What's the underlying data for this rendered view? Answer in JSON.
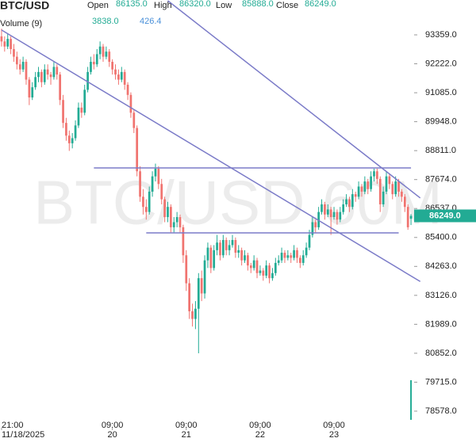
{
  "chart_data": {
    "type": "candlestick",
    "title": "BTC/USD",
    "watermark": "BTC/USD,60M",
    "header": [
      {
        "name": "Open",
        "value": 86135,
        "label": "86135.0"
      },
      {
        "name": "High",
        "value": 86320,
        "label": "86320.0"
      },
      {
        "name": "Low",
        "value": 85888,
        "label": "85888.0"
      },
      {
        "name": "Close",
        "value": 86249,
        "label": "86249.0"
      }
    ],
    "volume": {
      "name": "Volume (9)",
      "value": 3838,
      "label": "3838.0",
      "ma": 426.4,
      "ma_label": "426.4",
      "color": "#22ab94",
      "ma_color": "#4a90d9"
    },
    "up_color": "#22ab94",
    "down_color": "#f0736f",
    "line_color": "#7b7bc8",
    "last_price": {
      "value": 86249,
      "label": "86249.0"
    },
    "ylim": [
      77925,
      94728
    ],
    "yticks": [
      {
        "value": 93359,
        "label": "93359.0"
      },
      {
        "value": 92222,
        "label": "92222.0"
      },
      {
        "value": 91085,
        "label": "91085.0"
      },
      {
        "value": 89948,
        "label": "89948.0"
      },
      {
        "value": 88811,
        "label": "88811.0"
      },
      {
        "value": 87674,
        "label": "87674.0"
      },
      {
        "value": 86537,
        "label": "86537.0"
      },
      {
        "value": 85400,
        "label": "85400.0"
      },
      {
        "value": 84263,
        "label": "84263.0"
      },
      {
        "value": 83126,
        "label": "83126.0"
      },
      {
        "value": 81989,
        "label": "81989.0"
      },
      {
        "value": 80852,
        "label": "80852.0"
      },
      {
        "value": 79715,
        "label": "79715.0"
      },
      {
        "value": 78578,
        "label": "78578.0"
      }
    ],
    "xticks": [
      {
        "index": 0,
        "time": "21:00",
        "date": "11/18/2025"
      },
      {
        "index": 36,
        "time": "09:00",
        "date": "20"
      },
      {
        "index": 60,
        "time": "09:00",
        "date": "21"
      },
      {
        "index": 84,
        "time": "09:00",
        "date": "22"
      },
      {
        "index": 108,
        "time": "09:00",
        "date": "23"
      }
    ],
    "trendlines": [
      {
        "x1": 0,
        "y1": 93550,
        "x2": 136,
        "y2": 83670
      },
      {
        "x1": 54,
        "y1": 94700,
        "x2": 136,
        "y2": 86950
      },
      {
        "x1": 30,
        "y1": 88130,
        "x2": 133,
        "y2": 88130
      },
      {
        "x1": 47,
        "y1": 85580,
        "x2": 129,
        "y2": 85580
      }
    ],
    "candles": [
      [
        93300,
        93600,
        92900,
        93100
      ],
      [
        93100,
        93300,
        92700,
        92900
      ],
      [
        92900,
        93400,
        92800,
        93200
      ],
      [
        93200,
        93300,
        92600,
        92800
      ],
      [
        92800,
        93000,
        92300,
        92500
      ],
      [
        92500,
        92700,
        92000,
        92200
      ],
      [
        92200,
        92400,
        91800,
        92000
      ],
      [
        92000,
        92500,
        91900,
        92300
      ],
      [
        92300,
        92400,
        91400,
        91600
      ],
      [
        91600,
        91700,
        90600,
        90900
      ],
      [
        90900,
        91500,
        90800,
        91300
      ],
      [
        91300,
        91900,
        91200,
        91700
      ],
      [
        91700,
        92100,
        91500,
        91900
      ],
      [
        91900,
        92000,
        91300,
        91500
      ],
      [
        91500,
        92200,
        91400,
        92000
      ],
      [
        92000,
        92200,
        91600,
        91800
      ],
      [
        91800,
        91900,
        91400,
        91700
      ],
      [
        91700,
        92300,
        91600,
        92100
      ],
      [
        92100,
        92200,
        91600,
        91800
      ],
      [
        91800,
        91900,
        90600,
        90800
      ],
      [
        90800,
        91000,
        89700,
        89900
      ],
      [
        89900,
        90100,
        89200,
        89400
      ],
      [
        89400,
        89600,
        88800,
        89100
      ],
      [
        89100,
        89500,
        88900,
        89300
      ],
      [
        89300,
        90000,
        89200,
        89800
      ],
      [
        89800,
        90700,
        89700,
        90500
      ],
      [
        90500,
        90700,
        90100,
        90300
      ],
      [
        90300,
        91400,
        90200,
        91200
      ],
      [
        91200,
        92100,
        91100,
        91900
      ],
      [
        91900,
        92500,
        91800,
        92300
      ],
      [
        92300,
        92600,
        92000,
        92200
      ],
      [
        92200,
        92800,
        92100,
        92600
      ],
      [
        92600,
        93100,
        92400,
        92900
      ],
      [
        92900,
        93000,
        92300,
        92500
      ],
      [
        92500,
        92900,
        92400,
        92700
      ],
      [
        92700,
        92800,
        92100,
        92300
      ],
      [
        92300,
        92400,
        91800,
        92000
      ],
      [
        92000,
        92200,
        91600,
        91800
      ],
      [
        91800,
        92000,
        91400,
        91600
      ],
      [
        91600,
        92100,
        91500,
        91900
      ],
      [
        91900,
        92000,
        91200,
        91400
      ],
      [
        91400,
        91500,
        90800,
        91000
      ],
      [
        91000,
        91100,
        90100,
        90300
      ],
      [
        90300,
        90400,
        89500,
        89700
      ],
      [
        89700,
        89800,
        87800,
        88000
      ],
      [
        88000,
        88200,
        86800,
        87000
      ],
      [
        87000,
        87300,
        86300,
        86600
      ],
      [
        86600,
        86900,
        86100,
        86400
      ],
      [
        86400,
        87400,
        86300,
        87200
      ],
      [
        87200,
        88000,
        87000,
        87800
      ],
      [
        87800,
        88300,
        87600,
        88100
      ],
      [
        88100,
        88200,
        87300,
        87500
      ],
      [
        87500,
        87700,
        86700,
        86900
      ],
      [
        86900,
        87000,
        86000,
        86200
      ],
      [
        86200,
        86800,
        86000,
        86600
      ],
      [
        86600,
        86700,
        85600,
        85800
      ],
      [
        85800,
        86200,
        85600,
        86000
      ],
      [
        86000,
        86400,
        85800,
        86200
      ],
      [
        86200,
        86300,
        85600,
        85800
      ],
      [
        85800,
        85900,
        84400,
        84700
      ],
      [
        84700,
        84900,
        83300,
        83600
      ],
      [
        83600,
        83800,
        82200,
        82500
      ],
      [
        82500,
        82800,
        81900,
        82200
      ],
      [
        82200,
        82900,
        81800,
        82600
      ],
      [
        82600,
        84000,
        80850,
        83800
      ],
      [
        83800,
        84100,
        82900,
        83200
      ],
      [
        83200,
        84700,
        83000,
        84500
      ],
      [
        84500,
        85200,
        84200,
        85000
      ],
      [
        85000,
        85100,
        84000,
        84200
      ],
      [
        84200,
        85100,
        84100,
        84900
      ],
      [
        84900,
        85500,
        84700,
        85200
      ],
      [
        85200,
        85300,
        84500,
        84700
      ],
      [
        84700,
        85500,
        84600,
        85300
      ],
      [
        85300,
        85400,
        84700,
        84900
      ],
      [
        84900,
        85300,
        84700,
        85100
      ],
      [
        85100,
        85500,
        85000,
        85300
      ],
      [
        85300,
        85400,
        84600,
        84800
      ],
      [
        84800,
        85100,
        84600,
        84900
      ],
      [
        84900,
        85000,
        84300,
        84500
      ],
      [
        84500,
        84900,
        84400,
        84700
      ],
      [
        84700,
        84800,
        84100,
        84300
      ],
      [
        84300,
        84400,
        84000,
        84200
      ],
      [
        84200,
        84700,
        84100,
        84500
      ],
      [
        84500,
        84600,
        83800,
        84000
      ],
      [
        84000,
        84300,
        83900,
        84100
      ],
      [
        84100,
        84200,
        83700,
        83900
      ],
      [
        83900,
        84500,
        83800,
        84300
      ],
      [
        84300,
        84400,
        83600,
        83800
      ],
      [
        83800,
        84200,
        83700,
        84000
      ],
      [
        84000,
        84600,
        83900,
        84400
      ],
      [
        84400,
        84700,
        84300,
        84500
      ],
      [
        84500,
        85000,
        84400,
        84800
      ],
      [
        84800,
        84900,
        84400,
        84600
      ],
      [
        84600,
        84900,
        84500,
        84700
      ],
      [
        84700,
        84800,
        84400,
        84600
      ],
      [
        84600,
        85100,
        84500,
        84900
      ],
      [
        84900,
        85000,
        84400,
        84600
      ],
      [
        84600,
        84700,
        84200,
        84400
      ],
      [
        84400,
        84900,
        84300,
        84700
      ],
      [
        84700,
        85200,
        84600,
        85000
      ],
      [
        85000,
        85700,
        84900,
        85500
      ],
      [
        85500,
        86200,
        85400,
        86000
      ],
      [
        86000,
        86100,
        85600,
        85800
      ],
      [
        85800,
        86600,
        85700,
        86400
      ],
      [
        86400,
        86900,
        86300,
        86700
      ],
      [
        86700,
        86800,
        86100,
        86300
      ],
      [
        86300,
        86700,
        86200,
        86500
      ],
      [
        86500,
        86600,
        85500,
        86200
      ],
      [
        86200,
        86600,
        86100,
        86400
      ],
      [
        86400,
        86500,
        85900,
        86100
      ],
      [
        86100,
        86600,
        86000,
        86400
      ],
      [
        86400,
        86900,
        86300,
        86700
      ],
      [
        86700,
        87100,
        86600,
        86900
      ],
      [
        86900,
        87000,
        86400,
        86600
      ],
      [
        86600,
        87300,
        86500,
        87100
      ],
      [
        87100,
        87200,
        86800,
        87000
      ],
      [
        87000,
        87600,
        86900,
        87400
      ],
      [
        87400,
        87500,
        87000,
        87200
      ],
      [
        87200,
        87800,
        87100,
        87600
      ],
      [
        87600,
        87700,
        87100,
        87300
      ],
      [
        87300,
        88000,
        87200,
        87800
      ],
      [
        87800,
        88100,
        87600,
        88000
      ],
      [
        88000,
        88100,
        87500,
        87700
      ],
      [
        87700,
        87800,
        86400,
        86700
      ],
      [
        86700,
        87400,
        86600,
        87200
      ],
      [
        87200,
        88000,
        87100,
        87800
      ],
      [
        87800,
        87900,
        87300,
        87500
      ],
      [
        87500,
        87600,
        86900,
        87100
      ],
      [
        87100,
        87800,
        87000,
        87600
      ],
      [
        87600,
        87700,
        87000,
        87200
      ],
      [
        87200,
        87300,
        86800,
        87000
      ],
      [
        87000,
        87100,
        86400,
        86600
      ],
      [
        86600,
        86700,
        85700,
        85800
      ],
      [
        86135,
        86320,
        85888,
        86249
      ]
    ]
  }
}
